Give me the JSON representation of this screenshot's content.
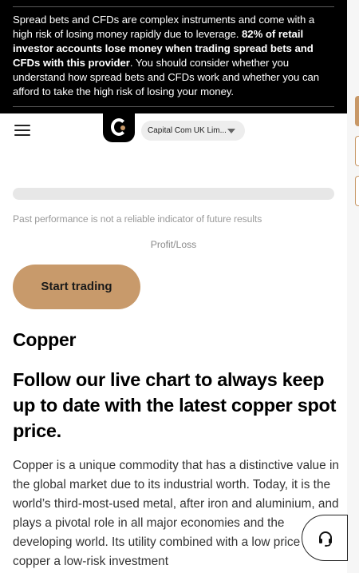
{
  "risk_warning": {
    "part1": "Spread bets and CFDs are complex instruments and come with a high risk of losing money rapidly due to leverage. ",
    "bold": "82% of retail investor accounts lose money when trading spread bets and CFDs with this provider",
    "part2": ". You should consider whether you understand how spread bets and CFDs work and whether you can afford to take the high risk of losing your money."
  },
  "header": {
    "entity_selector": "Capital Com UK Lim..."
  },
  "main": {
    "disclaimer": "Past performance is not a reliable indicator of future results",
    "profit_loss": "Profit/Loss",
    "start_trading": "Start trading",
    "title": "Copper",
    "subtitle": "Follow our live chart to always keep up to date with the latest copper spot price.",
    "body": "Copper is a unique commodity that has a distinctive value in the global market due to its industrial worth. Today, it is the world’s third-most-used metal, after iron and aluminium, and plays a pivotal role in all major economies and the developing world. Its utility combined with a low price makes copper a low-risk investment"
  },
  "colors": {
    "accent": "#c89a6b",
    "banner_bg": "#000000"
  },
  "icons": {
    "menu": "hamburger-menu-icon",
    "support": "headset-icon",
    "caret": "caret-down-icon"
  }
}
